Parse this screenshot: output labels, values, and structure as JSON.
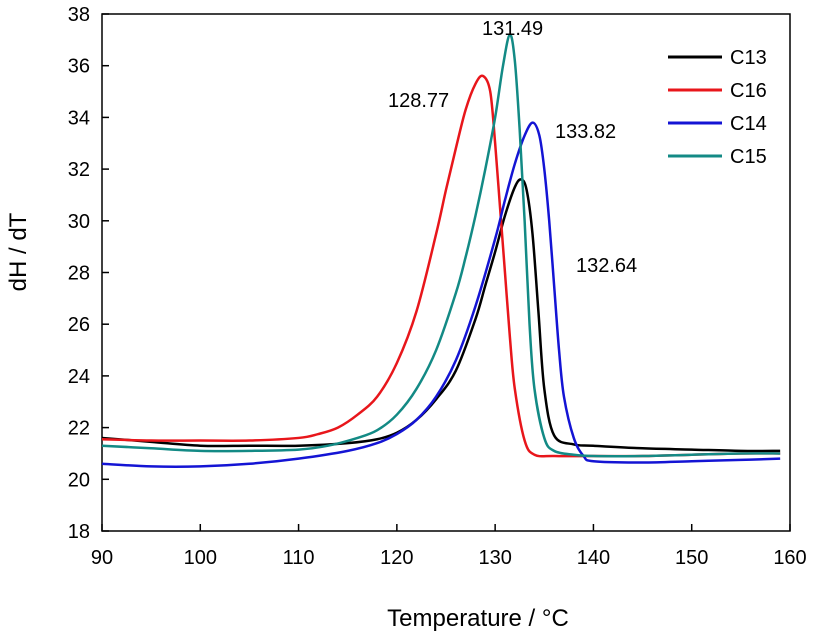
{
  "chart_data": {
    "type": "line",
    "xlabel": "Temperature / °C",
    "ylabel": "dH / dT",
    "xlim": [
      90,
      160
    ],
    "ylim": [
      18,
      38
    ],
    "xticks": [
      90,
      100,
      110,
      120,
      130,
      140,
      150,
      160
    ],
    "yticks": [
      18,
      20,
      22,
      24,
      26,
      28,
      30,
      32,
      34,
      36,
      38
    ],
    "grid": false,
    "legend_position": "top-right",
    "legend": [
      "C13",
      "C16",
      "C14",
      "C15"
    ],
    "annotations": [
      "131.49",
      "128.77",
      "133.82",
      "132.64"
    ],
    "series": [
      {
        "name": "C13",
        "color": "#000000",
        "x": [
          90,
          95,
          100,
          105,
          110,
          115,
          118,
          120,
          122,
          124,
          126,
          128,
          129,
          130,
          131,
          132,
          132.64,
          133.2,
          133.8,
          134.4,
          135,
          136,
          138,
          140,
          145,
          150,
          155,
          159
        ],
        "y": [
          21.6,
          21.45,
          21.3,
          21.3,
          21.3,
          21.4,
          21.55,
          21.8,
          22.3,
          23.1,
          24.2,
          26.2,
          27.5,
          28.8,
          30.2,
          31.3,
          31.6,
          31.2,
          29.5,
          26.5,
          23.5,
          21.7,
          21.35,
          21.3,
          21.2,
          21.15,
          21.1,
          21.1
        ]
      },
      {
        "name": "C16",
        "color": "#e8161b",
        "x": [
          90,
          95,
          100,
          105,
          110,
          112,
          114,
          116,
          118,
          120,
          122,
          124,
          125,
          126,
          127,
          128,
          128.77,
          129.5,
          130,
          130.5,
          131,
          131.5,
          132,
          133,
          134,
          136,
          140,
          145,
          150,
          155,
          159
        ],
        "y": [
          21.55,
          21.5,
          21.5,
          21.5,
          21.6,
          21.75,
          22.0,
          22.5,
          23.2,
          24.5,
          26.5,
          29.5,
          31.2,
          32.8,
          34.3,
          35.3,
          35.6,
          35.0,
          33.0,
          30.5,
          28.0,
          25.5,
          23.5,
          21.5,
          20.95,
          20.9,
          20.9,
          20.9,
          20.95,
          21.0,
          21.0
        ]
      },
      {
        "name": "C14",
        "color": "#1414d4",
        "x": [
          90,
          95,
          100,
          105,
          110,
          115,
          118,
          120,
          122,
          124,
          126,
          128,
          130,
          131,
          132,
          133,
          133.82,
          134.5,
          135,
          135.5,
          136,
          136.5,
          137,
          138,
          139,
          140,
          145,
          150,
          155,
          159
        ],
        "y": [
          20.6,
          20.5,
          20.5,
          20.6,
          20.8,
          21.1,
          21.4,
          21.75,
          22.3,
          23.2,
          24.6,
          26.7,
          29.3,
          30.8,
          32.2,
          33.3,
          33.8,
          33.3,
          32.0,
          30.0,
          27.5,
          25.0,
          23.2,
          21.6,
          20.9,
          20.7,
          20.65,
          20.7,
          20.75,
          20.8
        ]
      },
      {
        "name": "C15",
        "color": "#138a85",
        "x": [
          90,
          95,
          100,
          105,
          110,
          113,
          116,
          118,
          120,
          122,
          124,
          126,
          127,
          128,
          129,
          130,
          130.8,
          131.49,
          132,
          132.5,
          133,
          133.5,
          134,
          135,
          136,
          138,
          140,
          145,
          150,
          155,
          159
        ],
        "y": [
          21.3,
          21.2,
          21.1,
          21.1,
          21.15,
          21.3,
          21.6,
          21.9,
          22.5,
          23.5,
          25.0,
          27.2,
          28.6,
          30.2,
          32.0,
          34.0,
          36.0,
          37.2,
          36.2,
          33.5,
          30.0,
          26.0,
          23.5,
          21.6,
          21.1,
          20.95,
          20.9,
          20.9,
          20.95,
          21.0,
          21.0
        ]
      }
    ]
  }
}
